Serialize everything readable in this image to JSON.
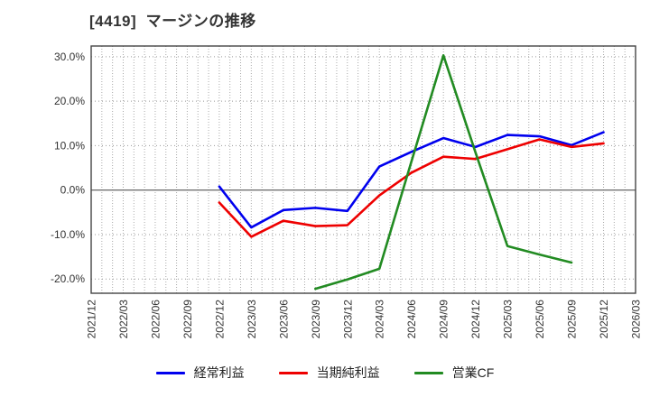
{
  "header": {
    "title": "[4419]  マージンの推移"
  },
  "chart_data": {
    "type": "line",
    "title": "[4419] マージンの推移",
    "categories": [
      "2021/12",
      "2022/03",
      "2022/06",
      "2022/09",
      "2022/12",
      "2023/03",
      "2023/06",
      "2023/09",
      "2023/12",
      "2024/03",
      "2024/06",
      "2024/09",
      "2024/12",
      "2025/03",
      "2025/06",
      "2025/09",
      "2025/12",
      "2026/03"
    ],
    "series": [
      {
        "name": "経常利益",
        "color": "#0000ee",
        "start_index": 4,
        "values": [
          0.8,
          -8.4,
          -4.5,
          -4.0,
          -4.7,
          5.3,
          8.6,
          11.7,
          9.7,
          12.4,
          12.1,
          10.1,
          13.0
        ]
      },
      {
        "name": "当期純利益",
        "color": "#ee0000",
        "start_index": 4,
        "values": [
          -2.8,
          -10.5,
          -6.9,
          -8.1,
          -7.9,
          -1.2,
          3.9,
          7.5,
          7.0,
          9.2,
          11.4,
          9.7,
          10.5
        ]
      },
      {
        "name": "営業CF",
        "color": "#228b22",
        "start_index": 7,
        "values": [
          -22.2,
          -20.1,
          -17.7,
          6.4,
          30.3,
          8.5,
          -12.6,
          -14.5,
          -16.3
        ]
      }
    ],
    "yticks": [
      30,
      20,
      10,
      0,
      -10,
      -20
    ],
    "ytick_labels": [
      "30.0%",
      "20.0%",
      "10.0%",
      "0.0%",
      "-10.0%",
      "-20.0%"
    ],
    "ylim": [
      -23.2,
      32.4
    ],
    "grid": "dotted; vertical gridline every month, horizontal every 10%",
    "legend_position": "bottom-center",
    "unit": "percent"
  }
}
